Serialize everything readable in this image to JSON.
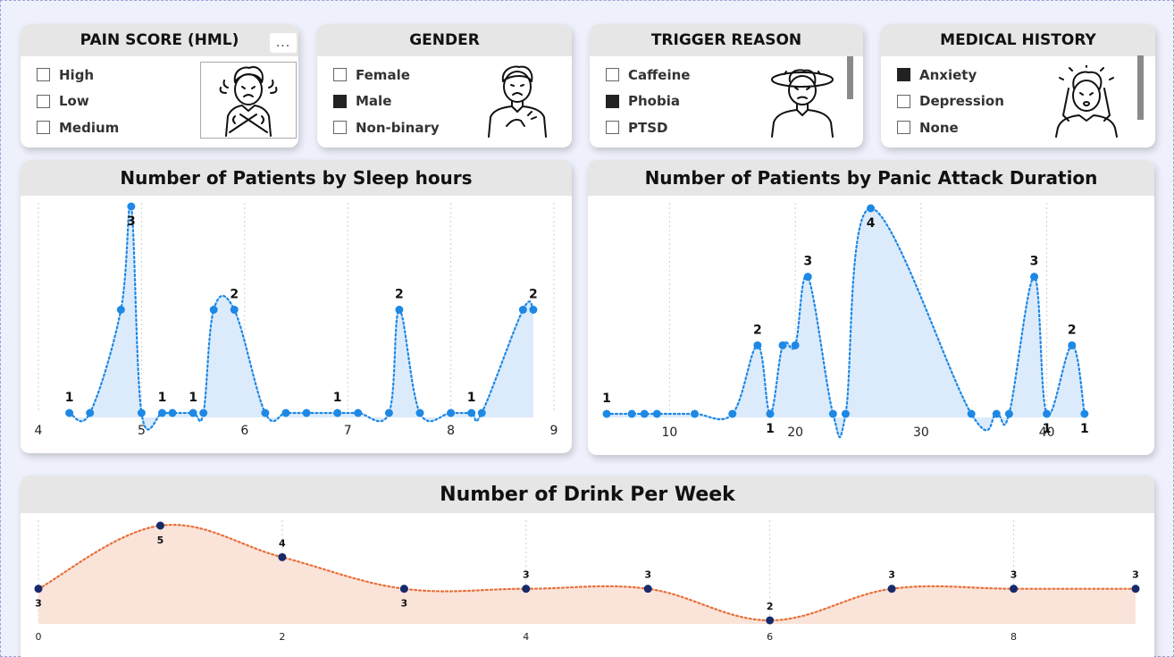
{
  "slicers": {
    "pain_score": {
      "title": "PAIN SCORE (HML)",
      "more_label": "...",
      "items": [
        {
          "label": "High",
          "checked": false
        },
        {
          "label": "Low",
          "checked": false
        },
        {
          "label": "Medium",
          "checked": false
        }
      ],
      "icon": "stressed-person-icon"
    },
    "gender": {
      "title": "GENDER",
      "items": [
        {
          "label": "Female",
          "checked": false
        },
        {
          "label": "Male",
          "checked": true
        },
        {
          "label": "Non-binary",
          "checked": false
        }
      ],
      "icon": "chest-pain-person-icon"
    },
    "trigger_reason": {
      "title": "TRIGGER REASON",
      "items": [
        {
          "label": "Caffeine",
          "checked": false
        },
        {
          "label": "Phobia",
          "checked": true
        },
        {
          "label": "PTSD",
          "checked": false
        }
      ],
      "icon": "dizzy-person-icon"
    },
    "medical_history": {
      "title": "MEDICAL HISTORY",
      "items": [
        {
          "label": "Anxiety",
          "checked": true
        },
        {
          "label": "Depression",
          "checked": false
        },
        {
          "label": "None",
          "checked": false
        }
      ],
      "icon": "headache-person-icon"
    }
  },
  "colors": {
    "sleep_line": "#1e88e5",
    "sleep_fill": "#dcebfb",
    "drink_line": "#e8703a",
    "drink_fill": "#fae3d9",
    "drink_point": "#172a6b",
    "checked": "#222222"
  },
  "chart_data": [
    {
      "type": "area",
      "title": "Number of Patients by Sleep hours",
      "xlim": [
        4,
        9
      ],
      "x_ticks": [
        "4",
        "5",
        "6",
        "7",
        "8",
        "9"
      ],
      "ylim": [
        1,
        3
      ],
      "points": [
        {
          "x": 4.3,
          "y": 1,
          "label": "1"
        },
        {
          "x": 4.5,
          "y": 1
        },
        {
          "x": 4.8,
          "y": 2
        },
        {
          "x": 4.9,
          "y": 3,
          "label": "3"
        },
        {
          "x": 5.0,
          "y": 1
        },
        {
          "x": 5.2,
          "y": 1,
          "label": "1"
        },
        {
          "x": 5.3,
          "y": 1
        },
        {
          "x": 5.5,
          "y": 1,
          "label": "1"
        },
        {
          "x": 5.6,
          "y": 1
        },
        {
          "x": 5.7,
          "y": 2
        },
        {
          "x": 5.9,
          "y": 2,
          "label": "2"
        },
        {
          "x": 6.2,
          "y": 1
        },
        {
          "x": 6.4,
          "y": 1
        },
        {
          "x": 6.6,
          "y": 1
        },
        {
          "x": 6.9,
          "y": 1,
          "label": "1"
        },
        {
          "x": 7.1,
          "y": 1
        },
        {
          "x": 7.4,
          "y": 1
        },
        {
          "x": 7.5,
          "y": 2,
          "label": "2"
        },
        {
          "x": 7.7,
          "y": 1
        },
        {
          "x": 8.0,
          "y": 1
        },
        {
          "x": 8.2,
          "y": 1,
          "label": "1"
        },
        {
          "x": 8.3,
          "y": 1
        },
        {
          "x": 8.7,
          "y": 2
        },
        {
          "x": 8.8,
          "y": 2,
          "label": "2"
        }
      ]
    },
    {
      "type": "area",
      "title": "Number of Patients by Panic Attack Duration",
      "xlim": [
        5,
        45
      ],
      "x_ticks": [
        "10",
        "20",
        "30",
        "40"
      ],
      "ylim": [
        1,
        4
      ],
      "points": [
        {
          "x": 5,
          "y": 1,
          "label": "1"
        },
        {
          "x": 7,
          "y": 1
        },
        {
          "x": 8,
          "y": 1
        },
        {
          "x": 9,
          "y": 1
        },
        {
          "x": 12,
          "y": 1
        },
        {
          "x": 15,
          "y": 1
        },
        {
          "x": 17,
          "y": 2,
          "label": "2"
        },
        {
          "x": 18,
          "y": 1,
          "label": "1"
        },
        {
          "x": 19,
          "y": 2
        },
        {
          "x": 20,
          "y": 2
        },
        {
          "x": 21,
          "y": 3,
          "label": "3"
        },
        {
          "x": 23,
          "y": 1
        },
        {
          "x": 24,
          "y": 1
        },
        {
          "x": 26,
          "y": 4,
          "label": "4"
        },
        {
          "x": 34,
          "y": 1
        },
        {
          "x": 36,
          "y": 1
        },
        {
          "x": 37,
          "y": 1
        },
        {
          "x": 39,
          "y": 3,
          "label": "3"
        },
        {
          "x": 40,
          "y": 1,
          "label": "1"
        },
        {
          "x": 42,
          "y": 2,
          "label": "2"
        },
        {
          "x": 43,
          "y": 1,
          "label": "1"
        }
      ]
    },
    {
      "type": "area",
      "title": "Number of Drink Per Week",
      "xlim": [
        0,
        9
      ],
      "x_ticks": [
        "0",
        "2",
        "4",
        "6",
        "8"
      ],
      "ylim": [
        2,
        5
      ],
      "points": [
        {
          "x": 0,
          "y": 3,
          "label": "3"
        },
        {
          "x": 1,
          "y": 5,
          "label": "5"
        },
        {
          "x": 2,
          "y": 4,
          "label": "4"
        },
        {
          "x": 3,
          "y": 3,
          "label": "3"
        },
        {
          "x": 4,
          "y": 3,
          "label": "3"
        },
        {
          "x": 5,
          "y": 3,
          "label": "3"
        },
        {
          "x": 6,
          "y": 2,
          "label": "2"
        },
        {
          "x": 7,
          "y": 3,
          "label": "3"
        },
        {
          "x": 8,
          "y": 3,
          "label": "3"
        },
        {
          "x": 9,
          "y": 3,
          "label": "3"
        }
      ]
    }
  ]
}
